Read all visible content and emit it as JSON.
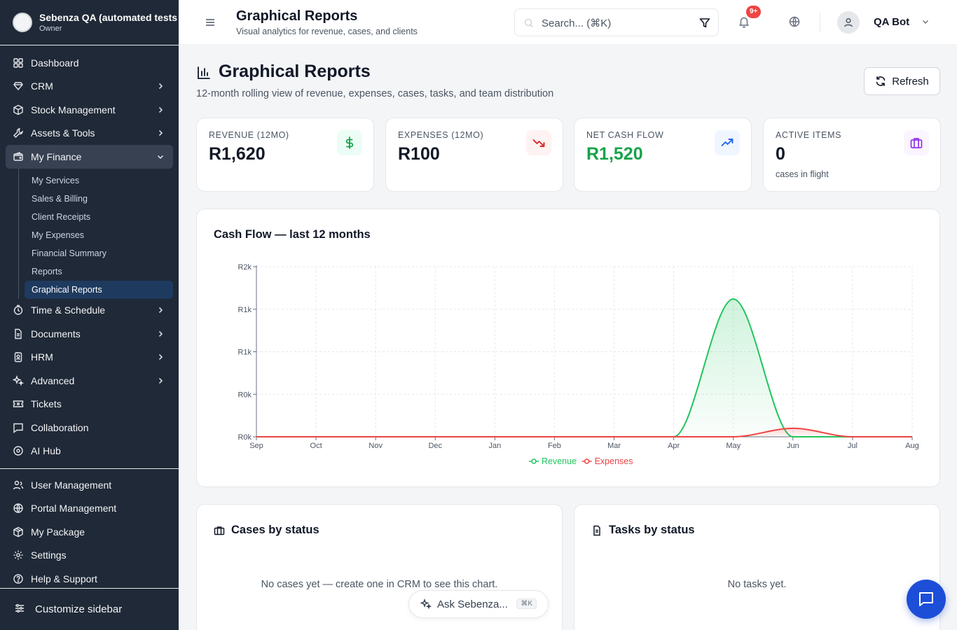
{
  "workspace": {
    "name": "Sebenza QA (automated tests",
    "role": "Owner"
  },
  "sidebar": {
    "items": [
      {
        "label": "Dashboard",
        "icon": "dashboard-icon",
        "chevron": false
      },
      {
        "label": "CRM",
        "icon": "crm-icon",
        "chevron": true
      },
      {
        "label": "Stock Management",
        "icon": "box-icon",
        "chevron": true
      },
      {
        "label": "Assets & Tools",
        "icon": "wrench-icon",
        "chevron": true
      },
      {
        "label": "My Finance",
        "icon": "wallet-icon",
        "chevron": true,
        "expanded": true
      }
    ],
    "finance_sub": [
      "My Services",
      "Sales & Billing",
      "Client Receipts",
      "My Expenses",
      "Financial Summary",
      "Reports",
      "Graphical Reports"
    ],
    "items2": [
      {
        "label": "Time & Schedule",
        "icon": "clock-icon",
        "chevron": true
      },
      {
        "label": "Documents",
        "icon": "document-icon",
        "chevron": true
      },
      {
        "label": "HRM",
        "icon": "badge-icon",
        "chevron": true
      },
      {
        "label": "Advanced",
        "icon": "sparkles-icon",
        "chevron": true
      },
      {
        "label": "Tickets",
        "icon": "ticket-icon",
        "chevron": false
      },
      {
        "label": "Collaboration",
        "icon": "chat-icon",
        "chevron": false
      },
      {
        "label": "AI Hub",
        "icon": "bot-icon",
        "chevron": false
      }
    ],
    "items3": [
      {
        "label": "User Management",
        "icon": "users-icon"
      },
      {
        "label": "Portal Management",
        "icon": "globe-icon"
      },
      {
        "label": "My Package",
        "icon": "package-icon"
      },
      {
        "label": "Settings",
        "icon": "gear-icon"
      },
      {
        "label": "Help & Support",
        "icon": "help-icon"
      }
    ],
    "customize_label": "Customize sidebar"
  },
  "header": {
    "title": "Graphical Reports",
    "subtitle": "Visual analytics for revenue, cases, and clients",
    "search_placeholder": "Search... (⌘K)",
    "notif_badge": "9+",
    "user_name": "QA Bot"
  },
  "page": {
    "title": "Graphical Reports",
    "subtitle": "12-month rolling view of revenue, expenses, cases, tasks, and team distribution",
    "refresh_label": "Refresh"
  },
  "kpis": [
    {
      "label": "REVENUE (12MO)",
      "value": "R1,620",
      "icon": "dollar-icon",
      "tone": "#16a34a",
      "bg": "#ecfdf5"
    },
    {
      "label": "EXPENSES (12MO)",
      "value": "R100",
      "icon": "trending-down-icon",
      "tone": "#dc2626",
      "bg": "#fef2f2"
    },
    {
      "label": "NET CASH FLOW",
      "value": "R1,520",
      "icon": "trending-up-icon",
      "tone": "#2563eb",
      "bg": "#eff6ff",
      "value_color": "#16a34a"
    },
    {
      "label": "ACTIVE ITEMS",
      "value": "0",
      "note": "cases in flight",
      "icon": "briefcase-icon",
      "tone": "#9333ea",
      "bg": "#faf5ff"
    }
  ],
  "chart_data": {
    "type": "area",
    "title": "Cash Flow — last 12 months",
    "categories": [
      "Sep",
      "Oct",
      "Nov",
      "Dec",
      "Jan",
      "Feb",
      "Mar",
      "Apr",
      "May",
      "Jun",
      "Jul",
      "Aug"
    ],
    "y_ticks": [
      "R0k",
      "R0k",
      "R1k",
      "R1k",
      "R2k"
    ],
    "ylim": [
      0,
      2000
    ],
    "grid": true,
    "legend_position": "bottom",
    "series": [
      {
        "name": "Revenue",
        "color": "#22c55e",
        "values": [
          0,
          0,
          0,
          0,
          0,
          0,
          0,
          0,
          1620,
          0,
          0,
          0
        ]
      },
      {
        "name": "Expenses",
        "color": "#ef4444",
        "values": [
          0,
          0,
          0,
          0,
          0,
          0,
          0,
          0,
          0,
          100,
          0,
          0
        ]
      }
    ]
  },
  "cases_card": {
    "title": "Cases by status",
    "empty": "No cases yet — create one in CRM to see this chart."
  },
  "tasks_card": {
    "title": "Tasks by status",
    "empty": "No tasks yet."
  },
  "assistant": {
    "label": "Ask Sebenza...",
    "shortcut": "⌘K"
  }
}
